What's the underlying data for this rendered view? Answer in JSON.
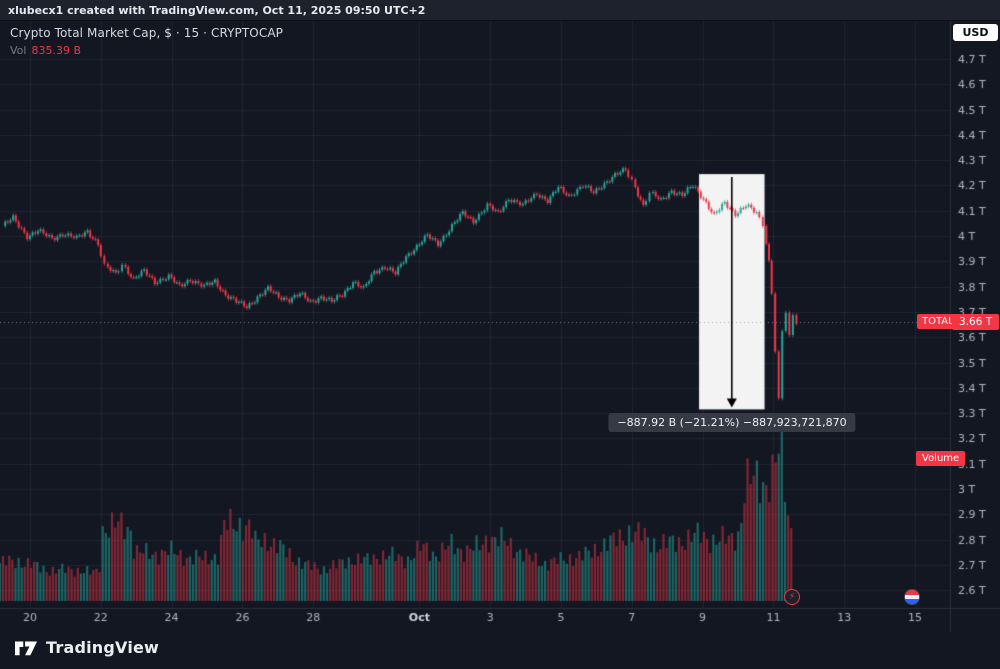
{
  "attribution_bar": {
    "text": "xlubecx1 created with TradingView.com, Oct 11, 2025 09:50 UTC+2"
  },
  "legend": {
    "symbol_title": "Crypto Total Market Cap, $ · 15 · CRYPTOCAP",
    "vol_label": "Vol",
    "vol_value": "835.39 B"
  },
  "price_axis": {
    "currency_button": "USD",
    "price_tag_badge": "TOTAL",
    "price_tag_value": "3.66 T",
    "volume_badge": "Volume"
  },
  "measure_tooltip": {
    "text": "−887.92 B (−21.21%) −887,923,721,870"
  },
  "footer": {
    "brand": "TradingView"
  },
  "icons": {
    "lightning_event": "⚡",
    "economic_event": "us-flag-circle"
  },
  "colors": {
    "background": "#131722",
    "panel": "#1e222d",
    "up": "#26a69a",
    "down": "#f23645",
    "accent_red": "#f23645",
    "axis_text": "#b2b5be",
    "axis_text_bright": "#d1d4dc",
    "grid": "rgba(255,255,255,0.055)",
    "axis_border": "#2a2e39",
    "tooltip_bg": "#363a45",
    "measure_box": "rgba(255,255,255,0.95)",
    "price_line": "#9598a1"
  },
  "chart_data": {
    "type": "candlestick",
    "title": "Crypto Total Market Cap, $ · 15 · CRYPTOCAP",
    "interval": "15",
    "unit": "trillions USD",
    "x_unit": "days since Sep 20",
    "ylim": [
      2.53,
      4.85
    ],
    "y_tick_values": [
      4.7,
      4.6,
      4.5,
      4.4,
      4.3,
      4.2,
      4.1,
      4.0,
      3.9,
      3.8,
      3.7,
      3.6,
      3.5,
      3.4,
      3.3,
      3.2,
      3.1,
      3.0,
      2.9,
      2.8,
      2.7,
      2.6
    ],
    "y_tick_labels": [
      "4.7 T",
      "4.6 T",
      "4.5 T",
      "4.4 T",
      "4.3 T",
      "4.2 T",
      "4.1 T",
      "4 T",
      "3.9 T",
      "3.8 T",
      "3.7 T",
      "3.6 T",
      "3.5 T",
      "3.4 T",
      "3.3 T",
      "3.2 T",
      "3.1 T",
      "3 T",
      "2.9 T",
      "2.8 T",
      "2.7 T",
      "2.6 T"
    ],
    "x_ticks": [
      {
        "d": 0,
        "label": "20"
      },
      {
        "d": 2,
        "label": "22"
      },
      {
        "d": 4,
        "label": "24"
      },
      {
        "d": 6,
        "label": "26"
      },
      {
        "d": 8,
        "label": "28"
      },
      {
        "d": 11,
        "label": "Oct"
      },
      {
        "d": 13,
        "label": "3"
      },
      {
        "d": 15,
        "label": "5"
      },
      {
        "d": 17,
        "label": "7"
      },
      {
        "d": 19,
        "label": "9"
      },
      {
        "d": 21,
        "label": "11"
      },
      {
        "d": 23,
        "label": "13"
      },
      {
        "d": 25,
        "label": "15"
      }
    ],
    "current_price": {
      "value": 3.66,
      "label": "3.66 T"
    },
    "visible_volume": "835.39 B",
    "price_series": [
      [
        -0.7,
        4.04
      ],
      [
        -0.4,
        4.07
      ],
      [
        0,
        4.0
      ],
      [
        0.3,
        4.02
      ],
      [
        0.7,
        3.99
      ],
      [
        1,
        4.01
      ],
      [
        1.4,
        3.99
      ],
      [
        1.7,
        4.02
      ],
      [
        2,
        3.97
      ],
      [
        2.2,
        3.88
      ],
      [
        2.5,
        3.85
      ],
      [
        2.7,
        3.89
      ],
      [
        3,
        3.83
      ],
      [
        3.3,
        3.86
      ],
      [
        3.6,
        3.82
      ],
      [
        4,
        3.84
      ],
      [
        4.3,
        3.8
      ],
      [
        4.6,
        3.83
      ],
      [
        5,
        3.8
      ],
      [
        5.3,
        3.82
      ],
      [
        5.6,
        3.77
      ],
      [
        5.9,
        3.74
      ],
      [
        6.2,
        3.72
      ],
      [
        6.5,
        3.76
      ],
      [
        6.8,
        3.79
      ],
      [
        7.1,
        3.76
      ],
      [
        7.4,
        3.75
      ],
      [
        7.7,
        3.77
      ],
      [
        8,
        3.74
      ],
      [
        8.3,
        3.76
      ],
      [
        8.6,
        3.74
      ],
      [
        8.9,
        3.77
      ],
      [
        9.2,
        3.82
      ],
      [
        9.5,
        3.79
      ],
      [
        9.8,
        3.86
      ],
      [
        10.1,
        3.88
      ],
      [
        10.4,
        3.85
      ],
      [
        10.7,
        3.92
      ],
      [
        11,
        3.96
      ],
      [
        11.3,
        4.0
      ],
      [
        11.6,
        3.97
      ],
      [
        12,
        4.04
      ],
      [
        12.3,
        4.09
      ],
      [
        12.6,
        4.06
      ],
      [
        13,
        4.12
      ],
      [
        13.3,
        4.09
      ],
      [
        13.6,
        4.15
      ],
      [
        14,
        4.12
      ],
      [
        14.4,
        4.17
      ],
      [
        14.7,
        4.14
      ],
      [
        15,
        4.19
      ],
      [
        15.3,
        4.16
      ],
      [
        15.7,
        4.2
      ],
      [
        16,
        4.17
      ],
      [
        16.3,
        4.21
      ],
      [
        16.6,
        4.24
      ],
      [
        16.9,
        4.26
      ],
      [
        17.1,
        4.22
      ],
      [
        17.4,
        4.12
      ],
      [
        17.6,
        4.17
      ],
      [
        17.9,
        4.14
      ],
      [
        18.2,
        4.18
      ],
      [
        18.5,
        4.16
      ],
      [
        18.8,
        4.2
      ],
      [
        19.1,
        4.15
      ],
      [
        19.4,
        4.08
      ],
      [
        19.7,
        4.13
      ],
      [
        20,
        4.09
      ],
      [
        20.3,
        4.12
      ],
      [
        20.6,
        4.09
      ],
      [
        20.8,
        4.05
      ],
      [
        20.95,
        3.9
      ],
      [
        21.05,
        3.78
      ],
      [
        21.15,
        3.55
      ],
      [
        21.25,
        3.35
      ],
      [
        21.35,
        3.62
      ],
      [
        21.45,
        3.7
      ],
      [
        21.55,
        3.6
      ],
      [
        21.65,
        3.68
      ],
      [
        21.75,
        3.66
      ]
    ],
    "volume_profile": [
      [
        -0.85,
        38
      ],
      [
        -0.3,
        40
      ],
      [
        0.2,
        34
      ],
      [
        0.7,
        30
      ],
      [
        1.2,
        32
      ],
      [
        1.7,
        28
      ],
      [
        1.95,
        30
      ],
      [
        2.05,
        72
      ],
      [
        2.5,
        76
      ],
      [
        2.85,
        72
      ],
      [
        2.95,
        50
      ],
      [
        3.4,
        46
      ],
      [
        3.9,
        50
      ],
      [
        4.4,
        44
      ],
      [
        4.9,
        42
      ],
      [
        5.35,
        46
      ],
      [
        5.45,
        74
      ],
      [
        5.9,
        78
      ],
      [
        6.25,
        73
      ],
      [
        6.35,
        58
      ],
      [
        6.7,
        62
      ],
      [
        7.1,
        52
      ],
      [
        7.5,
        42
      ],
      [
        7.9,
        34
      ],
      [
        8.3,
        32
      ],
      [
        8.7,
        36
      ],
      [
        9.1,
        42
      ],
      [
        9.5,
        40
      ],
      [
        9.9,
        46
      ],
      [
        10.3,
        44
      ],
      [
        10.7,
        42
      ],
      [
        11.1,
        54
      ],
      [
        11.5,
        46
      ],
      [
        11.9,
        56
      ],
      [
        12.3,
        50
      ],
      [
        12.7,
        54
      ],
      [
        12.95,
        64
      ],
      [
        13.35,
        60
      ],
      [
        13.75,
        52
      ],
      [
        14.15,
        42
      ],
      [
        14.55,
        38
      ],
      [
        14.95,
        40
      ],
      [
        15.35,
        44
      ],
      [
        15.75,
        46
      ],
      [
        16.15,
        56
      ],
      [
        16.55,
        60
      ],
      [
        16.95,
        70
      ],
      [
        17.35,
        64
      ],
      [
        17.75,
        56
      ],
      [
        18.15,
        58
      ],
      [
        18.55,
        62
      ],
      [
        18.95,
        66
      ],
      [
        19.35,
        60
      ],
      [
        19.75,
        62
      ],
      [
        20.05,
        68
      ],
      [
        20.2,
        116
      ],
      [
        20.5,
        122
      ],
      [
        20.8,
        118
      ],
      [
        21.0,
        128
      ],
      [
        21.15,
        148
      ],
      [
        21.25,
        150
      ],
      [
        21.35,
        100
      ],
      [
        21.5,
        72
      ],
      [
        21.55,
        40
      ]
    ],
    "measure_box": {
      "d_start": 18.9,
      "d_end": 20.75,
      "v_top": 4.245,
      "v_bottom": 3.315,
      "change": "−887.92 B",
      "change_pct": "−21.21%",
      "change_exact": "−887,923,721,870"
    }
  }
}
